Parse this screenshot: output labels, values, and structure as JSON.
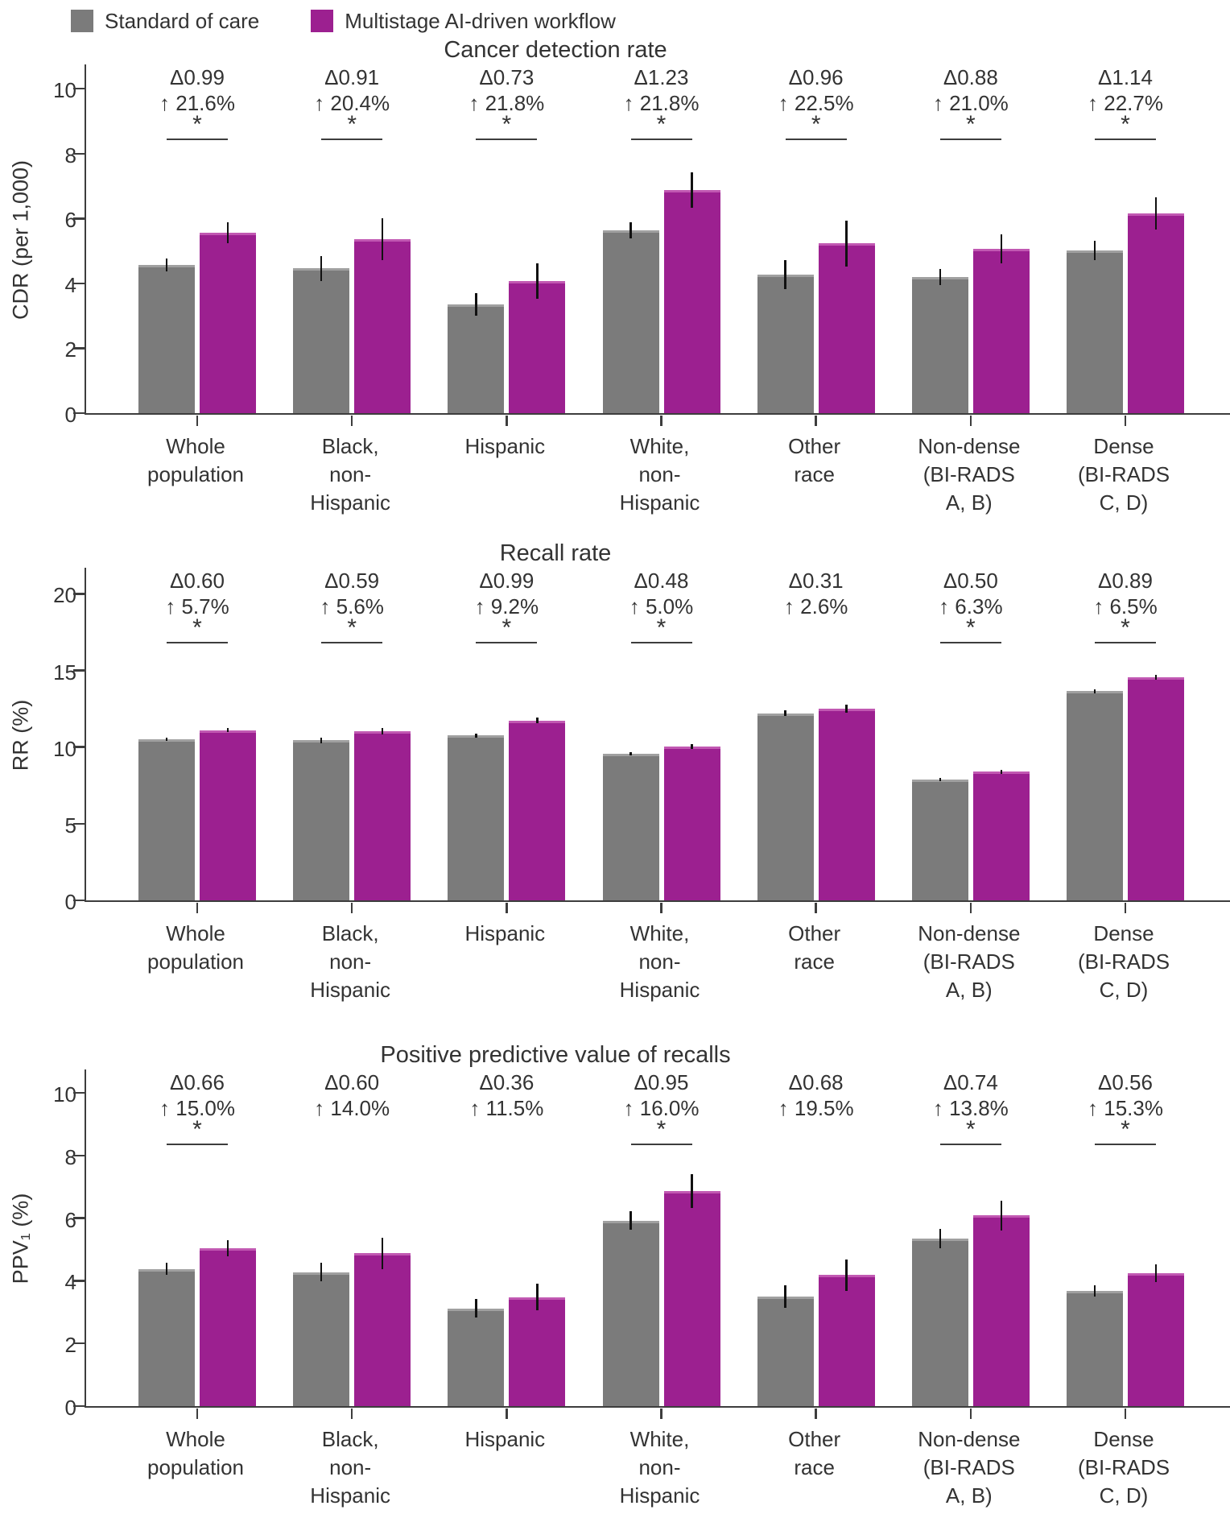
{
  "legend": {
    "items": [
      {
        "label": "Standard of care",
        "color": "#7b7b7b"
      },
      {
        "label": "Multistage AI-driven workflow",
        "color": "#9c2090"
      }
    ]
  },
  "colors": {
    "standard": "#7b7b7b",
    "standard_edge": "#a0a0a0",
    "ai": "#9c2090",
    "ai_edge": "#c158b2",
    "error_bar": "#111111",
    "axis": "#3d3d3d",
    "text": "#333333"
  },
  "chart_data": [
    {
      "type": "bar",
      "title": "Cancer detection rate",
      "ylabel": "CDR (per 1,000)",
      "ylim": [
        0,
        10.75
      ],
      "yticks": [
        0,
        2,
        4,
        6,
        8,
        10
      ],
      "grid": false,
      "legend_position": "top-left",
      "categories": [
        "Whole\npopulation",
        "Black,\nnon-\nHispanic",
        "Hispanic",
        "White,\nnon-\nHispanic",
        "Other\nrace",
        "Non-dense\n(BI-RADS\nA, B)",
        "Dense\n(BI-RADS\nC, D)"
      ],
      "series": [
        {
          "name": "Standard of care",
          "values": [
            4.57,
            4.46,
            3.35,
            5.64,
            4.27,
            4.19,
            5.02
          ],
          "errors": [
            0.2,
            0.38,
            0.35,
            0.25,
            0.45,
            0.25,
            0.3
          ]
        },
        {
          "name": "Multistage AI-driven workflow",
          "values": [
            5.56,
            5.37,
            4.08,
            6.87,
            5.23,
            5.07,
            6.16
          ],
          "errors": [
            0.33,
            0.65,
            0.55,
            0.55,
            0.7,
            0.45,
            0.5
          ]
        }
      ],
      "annotations": [
        {
          "delta": "Δ0.99",
          "pct": "↑ 21.6%",
          "significant": true
        },
        {
          "delta": "Δ0.91",
          "pct": "↑ 20.4%",
          "significant": true
        },
        {
          "delta": "Δ0.73",
          "pct": "↑ 21.8%",
          "significant": true
        },
        {
          "delta": "Δ1.23",
          "pct": "↑ 21.8%",
          "significant": true
        },
        {
          "delta": "Δ0.96",
          "pct": "↑ 22.5%",
          "significant": true
        },
        {
          "delta": "Δ0.88",
          "pct": "↑ 21.0%",
          "significant": true
        },
        {
          "delta": "Δ1.14",
          "pct": "↑ 22.7%",
          "significant": true
        }
      ]
    },
    {
      "type": "bar",
      "title": "Recall rate",
      "ylabel": "RR (%)",
      "ylim": [
        0,
        21.7
      ],
      "yticks": [
        0,
        5,
        10,
        15,
        20
      ],
      "grid": false,
      "categories": [
        "Whole\npopulation",
        "Black,\nnon-\nHispanic",
        "Hispanic",
        "White,\nnon-\nHispanic",
        "Other\nrace",
        "Non-dense\n(BI-RADS\nA, B)",
        "Dense\n(BI-RADS\nC, D)"
      ],
      "series": [
        {
          "name": "Standard of care",
          "values": [
            10.5,
            10.45,
            10.75,
            9.55,
            12.2,
            7.9,
            13.65
          ],
          "errors": [
            0.1,
            0.18,
            0.15,
            0.1,
            0.18,
            0.1,
            0.12
          ]
        },
        {
          "name": "Multistage AI-driven workflow",
          "values": [
            11.1,
            11.04,
            11.74,
            10.03,
            12.51,
            8.4,
            14.54
          ],
          "errors": [
            0.12,
            0.2,
            0.18,
            0.14,
            0.25,
            0.13,
            0.16
          ]
        }
      ],
      "annotations": [
        {
          "delta": "Δ0.60",
          "pct": "↑ 5.7%",
          "significant": true
        },
        {
          "delta": "Δ0.59",
          "pct": "↑ 5.6%",
          "significant": true
        },
        {
          "delta": "Δ0.99",
          "pct": "↑ 9.2%",
          "significant": true
        },
        {
          "delta": "Δ0.48",
          "pct": "↑ 5.0%",
          "significant": true
        },
        {
          "delta": "Δ0.31",
          "pct": "↑ 2.6%",
          "significant": false
        },
        {
          "delta": "Δ0.50",
          "pct": "↑ 6.3%",
          "significant": true
        },
        {
          "delta": "Δ0.89",
          "pct": "↑ 6.5%",
          "significant": true
        }
      ]
    },
    {
      "type": "bar",
      "title": "Positive predictive value of recalls",
      "ylabel": "PPV₁ (%)",
      "ylim": [
        0,
        10.75
      ],
      "yticks": [
        0,
        2,
        4,
        6,
        8,
        10
      ],
      "grid": false,
      "categories": [
        "Whole\npopulation",
        "Black,\nnon-\nHispanic",
        "Hispanic",
        "White,\nnon-\nHispanic",
        "Other\nrace",
        "Non-dense\n(BI-RADS\nA, B)",
        "Dense\n(BI-RADS\nC, D)"
      ],
      "series": [
        {
          "name": "Standard of care",
          "values": [
            4.38,
            4.28,
            3.12,
            5.92,
            3.5,
            5.35,
            3.68
          ],
          "errors": [
            0.2,
            0.3,
            0.3,
            0.3,
            0.35,
            0.3,
            0.18
          ]
        },
        {
          "name": "Multistage AI-driven workflow",
          "values": [
            5.04,
            4.88,
            3.48,
            6.87,
            4.18,
            6.09,
            4.24
          ],
          "errors": [
            0.26,
            0.5,
            0.42,
            0.55,
            0.5,
            0.48,
            0.28
          ]
        }
      ],
      "annotations": [
        {
          "delta": "Δ0.66",
          "pct": "↑ 15.0%",
          "significant": true
        },
        {
          "delta": "Δ0.60",
          "pct": "↑ 14.0%",
          "significant": false
        },
        {
          "delta": "Δ0.36",
          "pct": "↑ 11.5%",
          "significant": false
        },
        {
          "delta": "Δ0.95",
          "pct": "↑ 16.0%",
          "significant": true
        },
        {
          "delta": "Δ0.68",
          "pct": "↑ 19.5%",
          "significant": false
        },
        {
          "delta": "Δ0.74",
          "pct": "↑ 13.8%",
          "significant": true
        },
        {
          "delta": "Δ0.56",
          "pct": "↑ 15.3%",
          "significant": true
        }
      ]
    }
  ]
}
